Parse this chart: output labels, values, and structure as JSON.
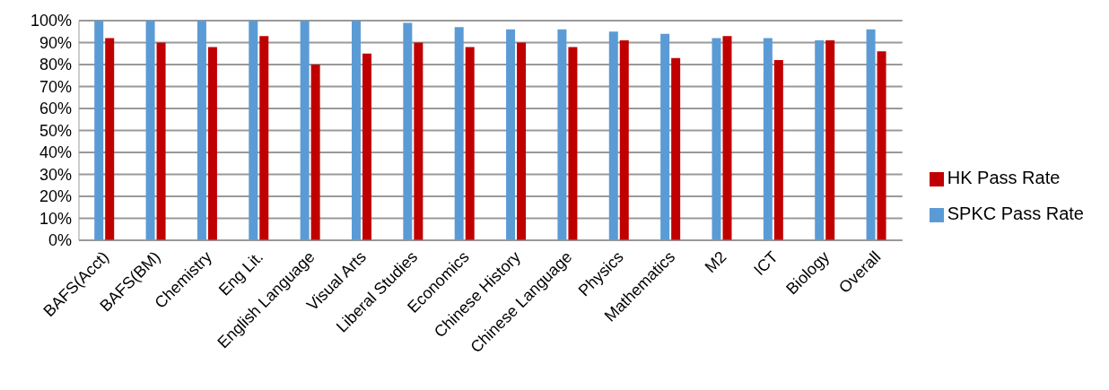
{
  "chart_data": {
    "type": "bar",
    "categories": [
      "BAFS(Acct)",
      "BAFS(BM)",
      "Chemistry",
      "Eng Lit.",
      "English Language",
      "Visual Arts",
      "Liberal Studies",
      "Economics",
      "Chinese History",
      "Chinese Language",
      "Physics",
      "Mathematics",
      "M2",
      "ICT",
      "Biology",
      "Overall"
    ],
    "series": [
      {
        "name": "SPKC Pass Rate",
        "color": "#5b9bd5",
        "values": [
          100,
          100,
          100,
          100,
          100,
          100,
          99,
          97,
          96,
          96,
          95,
          94,
          92,
          92,
          91,
          96
        ]
      },
      {
        "name": "HK Pass Rate",
        "color": "#c00000",
        "values": [
          92,
          90,
          88,
          93,
          80,
          85,
          90,
          88,
          90,
          88,
          91,
          83,
          93,
          82,
          91,
          86
        ]
      }
    ],
    "ylim": [
      0,
      100
    ],
    "yticks": [
      {
        "value": 0,
        "label": "0%"
      },
      {
        "value": 10,
        "label": "10%"
      },
      {
        "value": 20,
        "label": "20%"
      },
      {
        "value": 30,
        "label": "30%"
      },
      {
        "value": 40,
        "label": "40%"
      },
      {
        "value": 50,
        "label": "50%"
      },
      {
        "value": 60,
        "label": "60%"
      },
      {
        "value": 70,
        "label": "70%"
      },
      {
        "value": 80,
        "label": "80%"
      },
      {
        "value": 90,
        "label": "90%"
      },
      {
        "value": 100,
        "label": "100%"
      }
    ],
    "grid": "y",
    "legend": "right"
  }
}
